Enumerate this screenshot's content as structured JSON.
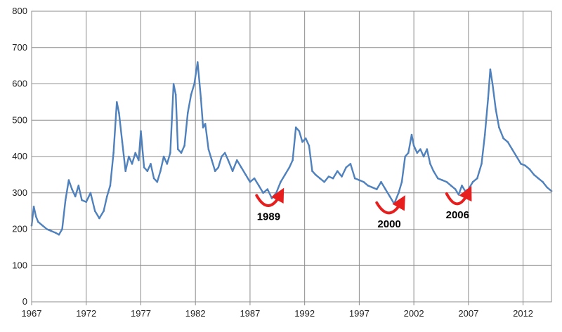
{
  "chart_data": {
    "type": "line",
    "title": "",
    "xlabel": "",
    "ylabel": "",
    "xlim": [
      1967,
      2014.6
    ],
    "ylim": [
      0,
      800
    ],
    "grid": true,
    "legend": "none",
    "x_ticks": [
      1967,
      1972,
      1977,
      1982,
      1987,
      1992,
      1997,
      2002,
      2007,
      2012
    ],
    "x_tick_labels": [
      "1967",
      "1972",
      "1977",
      "1982",
      "1987",
      "1992",
      "1997",
      "2002",
      "2007",
      "2012"
    ],
    "y_ticks": [
      0,
      100,
      200,
      300,
      400,
      500,
      600,
      700,
      800
    ],
    "y_tick_labels": [
      "0",
      "100",
      "200",
      "300",
      "400",
      "500",
      "600",
      "700",
      "800"
    ],
    "series": [
      {
        "color": "#4f81bd",
        "x": [
          1967.0,
          1967.2,
          1967.4,
          1967.6,
          1968.0,
          1968.4,
          1968.8,
          1969.2,
          1969.5,
          1969.8,
          1970.1,
          1970.4,
          1970.7,
          1971.0,
          1971.3,
          1971.6,
          1972.0,
          1972.4,
          1972.8,
          1973.2,
          1973.6,
          1973.9,
          1974.2,
          1974.5,
          1974.8,
          1975.0,
          1975.3,
          1975.6,
          1975.9,
          1976.2,
          1976.5,
          1976.8,
          1977.0,
          1977.3,
          1977.6,
          1977.9,
          1978.2,
          1978.5,
          1978.8,
          1979.1,
          1979.4,
          1979.7,
          1980.0,
          1980.2,
          1980.4,
          1980.7,
          1981.0,
          1981.3,
          1981.6,
          1981.9,
          1982.2,
          1982.5,
          1982.7,
          1982.9,
          1983.2,
          1983.5,
          1983.8,
          1984.1,
          1984.4,
          1984.7,
          1985.0,
          1985.4,
          1985.8,
          1986.2,
          1986.6,
          1987.0,
          1987.4,
          1987.8,
          1988.2,
          1988.6,
          1989.0,
          1989.4,
          1989.8,
          1990.2,
          1990.6,
          1990.9,
          1991.2,
          1991.5,
          1991.8,
          1992.1,
          1992.4,
          1992.7,
          1993.0,
          1993.4,
          1993.8,
          1994.2,
          1994.6,
          1995.0,
          1995.4,
          1995.8,
          1996.2,
          1996.6,
          1997.0,
          1997.4,
          1997.8,
          1998.2,
          1998.6,
          1999.0,
          1999.4,
          1999.8,
          2000.2,
          2000.6,
          2000.9,
          2001.2,
          2001.5,
          2001.8,
          2002.0,
          2002.3,
          2002.6,
          2002.9,
          2003.2,
          2003.5,
          2003.8,
          2004.2,
          2004.6,
          2005.0,
          2005.4,
          2005.8,
          2006.1,
          2006.4,
          2006.7,
          2007.0,
          2007.4,
          2007.8,
          2008.2,
          2008.5,
          2008.8,
          2009.0,
          2009.2,
          2009.5,
          2009.8,
          2010.2,
          2010.6,
          2011.0,
          2011.4,
          2011.8,
          2012.2,
          2012.6,
          2013.0,
          2013.4,
          2013.8,
          2014.2,
          2014.6
        ],
        "y": [
          210,
          262,
          235,
          220,
          210,
          200,
          195,
          190,
          185,
          200,
          280,
          335,
          310,
          290,
          320,
          280,
          275,
          300,
          250,
          230,
          250,
          290,
          320,
          410,
          550,
          520,
          440,
          360,
          400,
          380,
          410,
          390,
          470,
          370,
          360,
          380,
          340,
          330,
          360,
          400,
          380,
          410,
          600,
          570,
          420,
          410,
          430,
          520,
          570,
          600,
          660,
          560,
          480,
          490,
          420,
          390,
          360,
          370,
          400,
          410,
          390,
          360,
          390,
          370,
          350,
          330,
          340,
          320,
          300,
          310,
          285,
          300,
          330,
          350,
          370,
          390,
          480,
          470,
          440,
          450,
          430,
          360,
          350,
          340,
          330,
          345,
          340,
          360,
          345,
          370,
          380,
          340,
          335,
          330,
          320,
          315,
          310,
          330,
          310,
          290,
          270,
          300,
          330,
          400,
          410,
          460,
          430,
          410,
          420,
          400,
          420,
          380,
          360,
          340,
          335,
          330,
          320,
          310,
          295,
          320,
          305,
          310,
          330,
          340,
          380,
          460,
          560,
          640,
          600,
          530,
          480,
          450,
          440,
          420,
          400,
          380,
          375,
          365,
          350,
          340,
          330,
          315,
          305
        ]
      }
    ]
  },
  "annotations": [
    {
      "label": "1989",
      "arc_start": 1987.6,
      "arc_end": 1989.8,
      "arc_y": 285
    },
    {
      "label": "2000",
      "arc_start": 1998.6,
      "arc_end": 2000.9,
      "arc_y": 265
    },
    {
      "label": "2006",
      "arc_start": 2005.0,
      "arc_end": 2007.0,
      "arc_y": 290
    }
  ],
  "annotation_color": "#e61e1e"
}
